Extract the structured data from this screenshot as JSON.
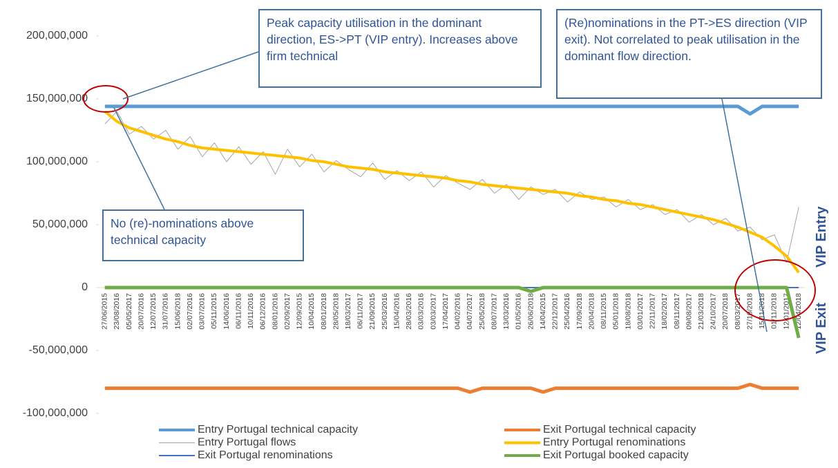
{
  "chart_data": {
    "type": "line",
    "annotations": [
      "Peak capacity utilisation in the dominant direction, ES->PT (VIP entry). Increases above firm technical",
      "(Re)nominations in the PT->ES direction (VIP exit). Not correlated to peak utilisation in the dominant flow direction.",
      "No (re)-nominations above technical capacity",
      "VIP Entry",
      "VIP Exit"
    ],
    "categories": [
      "27/06/2015",
      "23/08/2016",
      "05/05/2017",
      "20/07/2016",
      "12/07/2015",
      "31/07/2016",
      "15/06/2018",
      "02/07/2016",
      "03/07/2016",
      "05/11/2015",
      "14/06/2016",
      "06/11/2016",
      "10/11/2016",
      "06/12/2016",
      "08/01/2016",
      "02/09/2017",
      "12/09/2015",
      "10/04/2015",
      "08/01/2018",
      "28/05/2018",
      "18/03/2017",
      "06/11/2017",
      "21/09/2015",
      "25/03/2016",
      "15/04/2016",
      "28/03/2016",
      "03/03/2016",
      "03/03/2017",
      "17/04/2017",
      "04/02/2016",
      "04/07/2017",
      "25/05/2018",
      "08/07/2017",
      "13/03/2016",
      "01/05/2016",
      "26/06/2018",
      "14/04/2015",
      "22/12/2017",
      "25/04/2016",
      "17/09/2018",
      "20/04/2018",
      "08/11/2015",
      "05/01/2018",
      "18/08/2018",
      "03/01/2017",
      "22/11/2017",
      "18/02/2017",
      "08/11/2017",
      "09/08/2017",
      "21/03/2018",
      "24/10/2017",
      "20/07/2018",
      "08/03/2017",
      "27/10/2018",
      "15/11/2018",
      "01/11/2018",
      "12/01/2017",
      "12/04/2018"
    ],
    "series": [
      {
        "name": "Entry Portugal technical capacity",
        "color": "#5b9bd5",
        "width": 5,
        "values": [
          144000000,
          144000000,
          144000000,
          144000000,
          144000000,
          144000000,
          144000000,
          144000000,
          144000000,
          144000000,
          144000000,
          144000000,
          144000000,
          144000000,
          144000000,
          144000000,
          144000000,
          144000000,
          144000000,
          144000000,
          144000000,
          144000000,
          144000000,
          144000000,
          144000000,
          144000000,
          144000000,
          144000000,
          144000000,
          144000000,
          144000000,
          144000000,
          144000000,
          144000000,
          144000000,
          144000000,
          144000000,
          144000000,
          144000000,
          144000000,
          144000000,
          144000000,
          144000000,
          144000000,
          144000000,
          144000000,
          144000000,
          144000000,
          144000000,
          144000000,
          144000000,
          144000000,
          144000000,
          138000000,
          144000000,
          144000000,
          144000000,
          144000000
        ]
      },
      {
        "name": "Exit Portugal technical capacity",
        "color": "#ed7d31",
        "width": 5,
        "values": [
          -80000000,
          -80000000,
          -80000000,
          -80000000,
          -80000000,
          -80000000,
          -80000000,
          -80000000,
          -80000000,
          -80000000,
          -80000000,
          -80000000,
          -80000000,
          -80000000,
          -80000000,
          -80000000,
          -80000000,
          -80000000,
          -80000000,
          -80000000,
          -80000000,
          -80000000,
          -80000000,
          -80000000,
          -80000000,
          -80000000,
          -80000000,
          -80000000,
          -80000000,
          -80000000,
          -83000000,
          -80000000,
          -80000000,
          -80000000,
          -80000000,
          -80000000,
          -83000000,
          -80000000,
          -80000000,
          -80000000,
          -80000000,
          -80000000,
          -80000000,
          -80000000,
          -80000000,
          -80000000,
          -80000000,
          -80000000,
          -80000000,
          -80000000,
          -80000000,
          -80000000,
          -80000000,
          -77000000,
          -80000000,
          -80000000,
          -80000000,
          -80000000
        ]
      },
      {
        "name": "Entry Portugal flows",
        "color": "#a5a5a5",
        "width": 1,
        "values": [
          130000000,
          140000000,
          122000000,
          128000000,
          118000000,
          125000000,
          110000000,
          120000000,
          104000000,
          115000000,
          100000000,
          112000000,
          98000000,
          108000000,
          90000000,
          110000000,
          96000000,
          106000000,
          92000000,
          101000000,
          94000000,
          88000000,
          99000000,
          86000000,
          93000000,
          85000000,
          92000000,
          80000000,
          89000000,
          83000000,
          78000000,
          86000000,
          75000000,
          82000000,
          70000000,
          80000000,
          74000000,
          78000000,
          68000000,
          76000000,
          70000000,
          72000000,
          64000000,
          70000000,
          62000000,
          66000000,
          58000000,
          62000000,
          52000000,
          58000000,
          50000000,
          55000000,
          45000000,
          48000000,
          38000000,
          42000000,
          20000000,
          64000000
        ]
      },
      {
        "name": "Entry Portugal renominations",
        "color": "#ffc000",
        "width": 4,
        "values": [
          140000000,
          132000000,
          127000000,
          124000000,
          121000000,
          118000000,
          116000000,
          113000000,
          111000000,
          110000000,
          109000000,
          108000000,
          107000000,
          106000000,
          105000000,
          104000000,
          103000000,
          101000000,
          100000000,
          98000000,
          96000000,
          95000000,
          94000000,
          92000000,
          91000000,
          90000000,
          89000000,
          88000000,
          87000000,
          85000000,
          84000000,
          82000000,
          81000000,
          80000000,
          79000000,
          78000000,
          77000000,
          76000000,
          75000000,
          73000000,
          72000000,
          70000000,
          69000000,
          67000000,
          66000000,
          64000000,
          62000000,
          60000000,
          58000000,
          56000000,
          54000000,
          51000000,
          48000000,
          44000000,
          40000000,
          33000000,
          25000000,
          12000000
        ]
      },
      {
        "name": "Exit Portugal renominations",
        "color": "#4472c4",
        "width": 2,
        "values": [
          0,
          0,
          0,
          0,
          0,
          0,
          0,
          0,
          0,
          0,
          0,
          0,
          0,
          0,
          0,
          0,
          0,
          0,
          0,
          0,
          0,
          0,
          0,
          0,
          0,
          0,
          0,
          0,
          0,
          0,
          0,
          0,
          0,
          0,
          0,
          0,
          0,
          0,
          0,
          0,
          0,
          0,
          0,
          0,
          0,
          0,
          0,
          0,
          0,
          0,
          0,
          0,
          0,
          0,
          0,
          0,
          0,
          0
        ]
      },
      {
        "name": "Exit Portugal booked capacity",
        "color": "#70ad47",
        "width": 5,
        "values": [
          0,
          0,
          0,
          0,
          0,
          0,
          0,
          0,
          0,
          0,
          0,
          0,
          0,
          0,
          0,
          0,
          0,
          0,
          0,
          0,
          0,
          0,
          0,
          0,
          0,
          0,
          0,
          0,
          0,
          0,
          0,
          0,
          0,
          0,
          0,
          -3000000,
          0,
          0,
          0,
          0,
          0,
          0,
          0,
          0,
          0,
          0,
          0,
          0,
          0,
          0,
          0,
          0,
          0,
          0,
          0,
          0,
          0,
          -40000000
        ]
      }
    ],
    "ylim": [
      -100000000,
      200000000
    ],
    "yticks": [
      {
        "value": -100000000,
        "label": "-100,000,000"
      },
      {
        "value": -50000000,
        "label": "-50,000,000"
      },
      0,
      {
        "value": 50000000,
        "label": "50,000,000"
      },
      {
        "value": 100000000,
        "label": "100,000,000"
      },
      {
        "value": 150000000,
        "label": "150,000,000"
      },
      {
        "value": 200000000,
        "label": "200,000,000"
      }
    ]
  }
}
